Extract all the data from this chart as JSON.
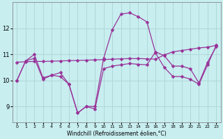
{
  "xlabel": "Windchill (Refroidissement éolien,°C)",
  "bg_color": "#c8eef0",
  "grid_color": "#b0d8d8",
  "line_color": "#993399",
  "x_ticks": [
    0,
    1,
    2,
    3,
    4,
    5,
    6,
    7,
    8,
    9,
    10,
    11,
    12,
    13,
    14,
    15,
    16,
    17,
    18,
    19,
    20,
    21,
    22,
    23
  ],
  "y_ticks": [
    9,
    10,
    11,
    12
  ],
  "ylim": [
    8.4,
    13.0
  ],
  "xlim": [
    -0.5,
    23.5
  ],
  "line1_x": [
    0,
    1,
    2,
    3,
    4,
    5,
    6,
    7,
    8,
    9,
    10,
    11,
    12,
    13,
    14,
    15,
    16,
    17,
    18,
    19,
    20,
    21,
    22,
    23
  ],
  "line1_y": [
    10.0,
    10.75,
    11.0,
    10.1,
    10.2,
    10.15,
    9.85,
    8.75,
    9.0,
    9.0,
    10.85,
    11.95,
    12.55,
    12.6,
    12.45,
    12.25,
    11.05,
    10.5,
    10.15,
    10.15,
    10.05,
    9.85,
    10.6,
    11.35
  ],
  "line2_x": [
    0,
    1,
    2,
    3,
    4,
    5,
    6,
    7,
    8,
    9,
    10,
    11,
    12,
    13,
    14,
    15,
    16,
    17,
    18,
    19,
    20,
    21,
    22,
    23
  ],
  "line2_y": [
    10.7,
    10.72,
    10.73,
    10.73,
    10.74,
    10.75,
    10.76,
    10.77,
    10.78,
    10.79,
    10.8,
    10.82,
    10.83,
    10.84,
    10.84,
    10.83,
    10.82,
    10.98,
    11.1,
    11.15,
    11.2,
    11.25,
    11.28,
    11.35
  ],
  "line3_x": [
    0,
    1,
    2,
    3,
    4,
    5,
    6,
    7,
    8,
    9,
    10,
    11,
    12,
    13,
    14,
    15,
    16,
    17,
    18,
    19,
    20,
    21,
    22,
    23
  ],
  "line3_y": [
    10.0,
    10.75,
    10.85,
    10.05,
    10.2,
    10.3,
    9.85,
    8.75,
    9.0,
    8.9,
    10.45,
    10.55,
    10.6,
    10.65,
    10.62,
    10.6,
    11.1,
    10.95,
    10.55,
    10.55,
    10.45,
    9.9,
    10.7,
    11.3
  ]
}
